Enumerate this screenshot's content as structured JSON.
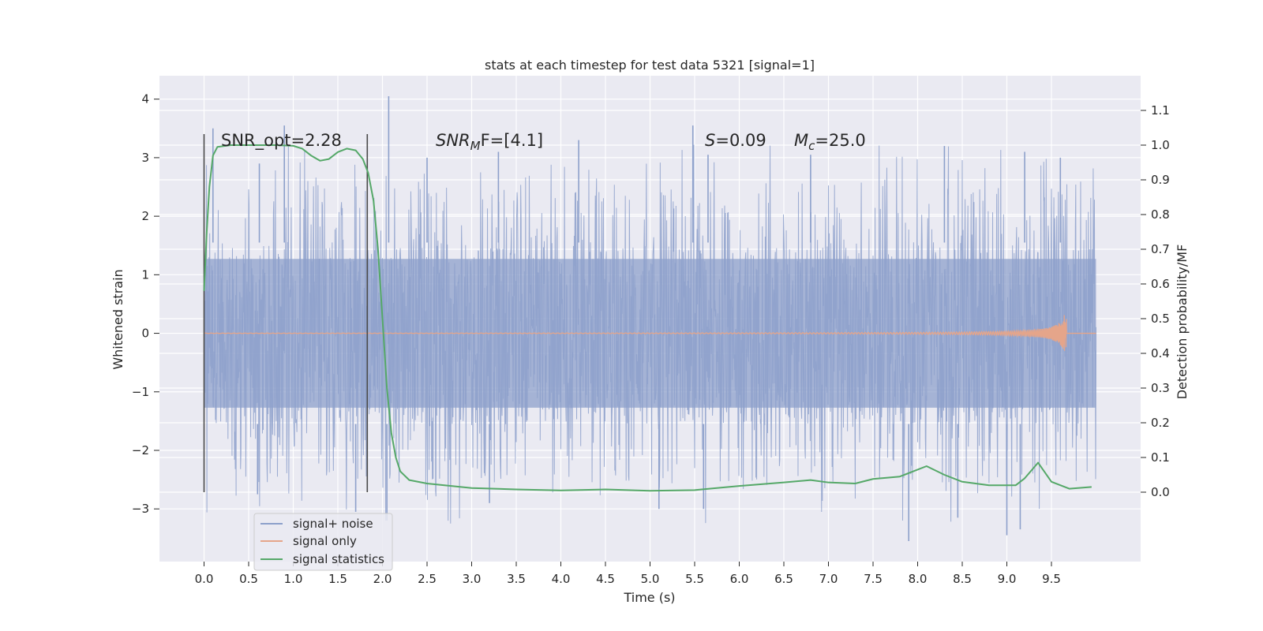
{
  "chart_data": {
    "type": "line",
    "title": "stats at each timestep for test data 5321 [signal=1]",
    "xlabel": "Time (s)",
    "ylabel_left": "Whitened strain",
    "ylabel_right": "Detection probability/MF",
    "xlim": [
      -0.5,
      10.5
    ],
    "ylim_left": [
      -3.9,
      4.4
    ],
    "ylim_right": [
      -0.2,
      1.2
    ],
    "x_ticks": [
      0.0,
      0.5,
      1.0,
      1.5,
      2.0,
      2.5,
      3.0,
      3.5,
      4.0,
      4.5,
      5.0,
      5.5,
      6.0,
      6.5,
      7.0,
      7.5,
      8.0,
      8.5,
      9.0,
      9.5
    ],
    "x_tick_labels": [
      "0.0",
      "0.5",
      "1.0",
      "1.5",
      "2.0",
      "2.5",
      "3.0",
      "3.5",
      "4.0",
      "4.5",
      "5.0",
      "5.5",
      "6.0",
      "6.5",
      "7.0",
      "7.5",
      "8.0",
      "8.5",
      "9.0",
      "9.5"
    ],
    "y_ticks_left": [
      -3,
      -2,
      -1,
      0,
      1,
      2,
      3,
      4
    ],
    "y_tick_labels_left": [
      "−3",
      "−2",
      "−1",
      "0",
      "1",
      "2",
      "3",
      "4"
    ],
    "y_ticks_right": [
      0.0,
      0.1,
      0.2,
      0.3,
      0.4,
      0.5,
      0.6,
      0.7,
      0.8,
      0.9,
      1.0,
      1.1
    ],
    "y_tick_labels_right": [
      "0.0",
      "0.1",
      "0.2",
      "0.3",
      "0.4",
      "0.5",
      "0.6",
      "0.7",
      "0.8",
      "0.9",
      "1.0",
      "1.1"
    ],
    "grid": true,
    "legend_position": "bottom-left",
    "annotations": {
      "snr_opt": "SNR_opt=2.28",
      "snr_mf_main": "SNR",
      "snr_mf_sub": "M",
      "snr_mf_rest": "F=[4.1]",
      "s_var": "S",
      "s_value": "=0.09",
      "mc_var": "M",
      "mc_sub": "c",
      "mc_value": "=25.0"
    },
    "vertical_markers": [
      0.0,
      1.83
    ],
    "series": [
      {
        "name": "signal+ noise",
        "color": "#8da0cb",
        "axis": "left",
        "x_range": [
          0.0,
          10.0
        ],
        "core_amplitude": 1.55,
        "peaks": [
          {
            "x": 0.1,
            "y": 3.5
          },
          {
            "x": 0.62,
            "y": 2.9
          },
          {
            "x": 0.9,
            "y": 3.55
          },
          {
            "x": 2.07,
            "y": 4.05
          },
          {
            "x": 2.5,
            "y": 3.0
          },
          {
            "x": 3.3,
            "y": 3.1
          },
          {
            "x": 4.2,
            "y": 3.3
          },
          {
            "x": 5.48,
            "y": 3.55
          },
          {
            "x": 5.65,
            "y": 3.05
          },
          {
            "x": 6.8,
            "y": 3.05
          },
          {
            "x": 8.3,
            "y": 3.2
          },
          {
            "x": 9.2,
            "y": 3.1
          },
          {
            "x": 9.6,
            "y": 3.0
          }
        ],
        "troughs": [
          {
            "x": 0.6,
            "y": -2.75
          },
          {
            "x": 1.7,
            "y": -3.05
          },
          {
            "x": 2.05,
            "y": -3.2
          },
          {
            "x": 3.2,
            "y": -2.9
          },
          {
            "x": 5.1,
            "y": -3.0
          },
          {
            "x": 5.6,
            "y": -3.0
          },
          {
            "x": 7.9,
            "y": -3.55
          },
          {
            "x": 8.45,
            "y": -3.15
          },
          {
            "x": 9.0,
            "y": -3.45
          },
          {
            "x": 9.15,
            "y": -3.35
          }
        ]
      },
      {
        "name": "signal only",
        "color": "#e5a58a",
        "axis": "left",
        "x_range": [
          0.0,
          10.0
        ],
        "chirp_end": 9.67,
        "chirp_peak_amplitude": 0.5
      },
      {
        "name": "signal statistics",
        "color": "#55a868",
        "axis": "right",
        "points": [
          [
            0.0,
            0.58
          ],
          [
            0.03,
            0.75
          ],
          [
            0.06,
            0.88
          ],
          [
            0.1,
            0.97
          ],
          [
            0.15,
            0.995
          ],
          [
            0.3,
            1.0
          ],
          [
            0.5,
            1.0
          ],
          [
            0.8,
            1.0
          ],
          [
            1.0,
            0.998
          ],
          [
            1.1,
            0.99
          ],
          [
            1.2,
            0.97
          ],
          [
            1.3,
            0.955
          ],
          [
            1.4,
            0.96
          ],
          [
            1.5,
            0.98
          ],
          [
            1.6,
            0.99
          ],
          [
            1.7,
            0.985
          ],
          [
            1.78,
            0.96
          ],
          [
            1.84,
            0.92
          ],
          [
            1.9,
            0.84
          ],
          [
            1.95,
            0.7
          ],
          [
            2.0,
            0.5
          ],
          [
            2.05,
            0.3
          ],
          [
            2.1,
            0.17
          ],
          [
            2.15,
            0.1
          ],
          [
            2.2,
            0.06
          ],
          [
            2.3,
            0.035
          ],
          [
            2.5,
            0.025
          ],
          [
            3.0,
            0.012
          ],
          [
            3.5,
            0.008
          ],
          [
            4.0,
            0.005
          ],
          [
            4.5,
            0.008
          ],
          [
            5.0,
            0.004
          ],
          [
            5.5,
            0.006
          ],
          [
            6.0,
            0.018
          ],
          [
            6.5,
            0.028
          ],
          [
            6.8,
            0.035
          ],
          [
            7.0,
            0.028
          ],
          [
            7.3,
            0.025
          ],
          [
            7.5,
            0.038
          ],
          [
            7.8,
            0.045
          ],
          [
            8.1,
            0.075
          ],
          [
            8.3,
            0.05
          ],
          [
            8.5,
            0.03
          ],
          [
            8.8,
            0.02
          ],
          [
            9.1,
            0.02
          ],
          [
            9.2,
            0.04
          ],
          [
            9.35,
            0.085
          ],
          [
            9.5,
            0.03
          ],
          [
            9.7,
            0.01
          ],
          [
            9.95,
            0.015
          ]
        ]
      }
    ]
  }
}
